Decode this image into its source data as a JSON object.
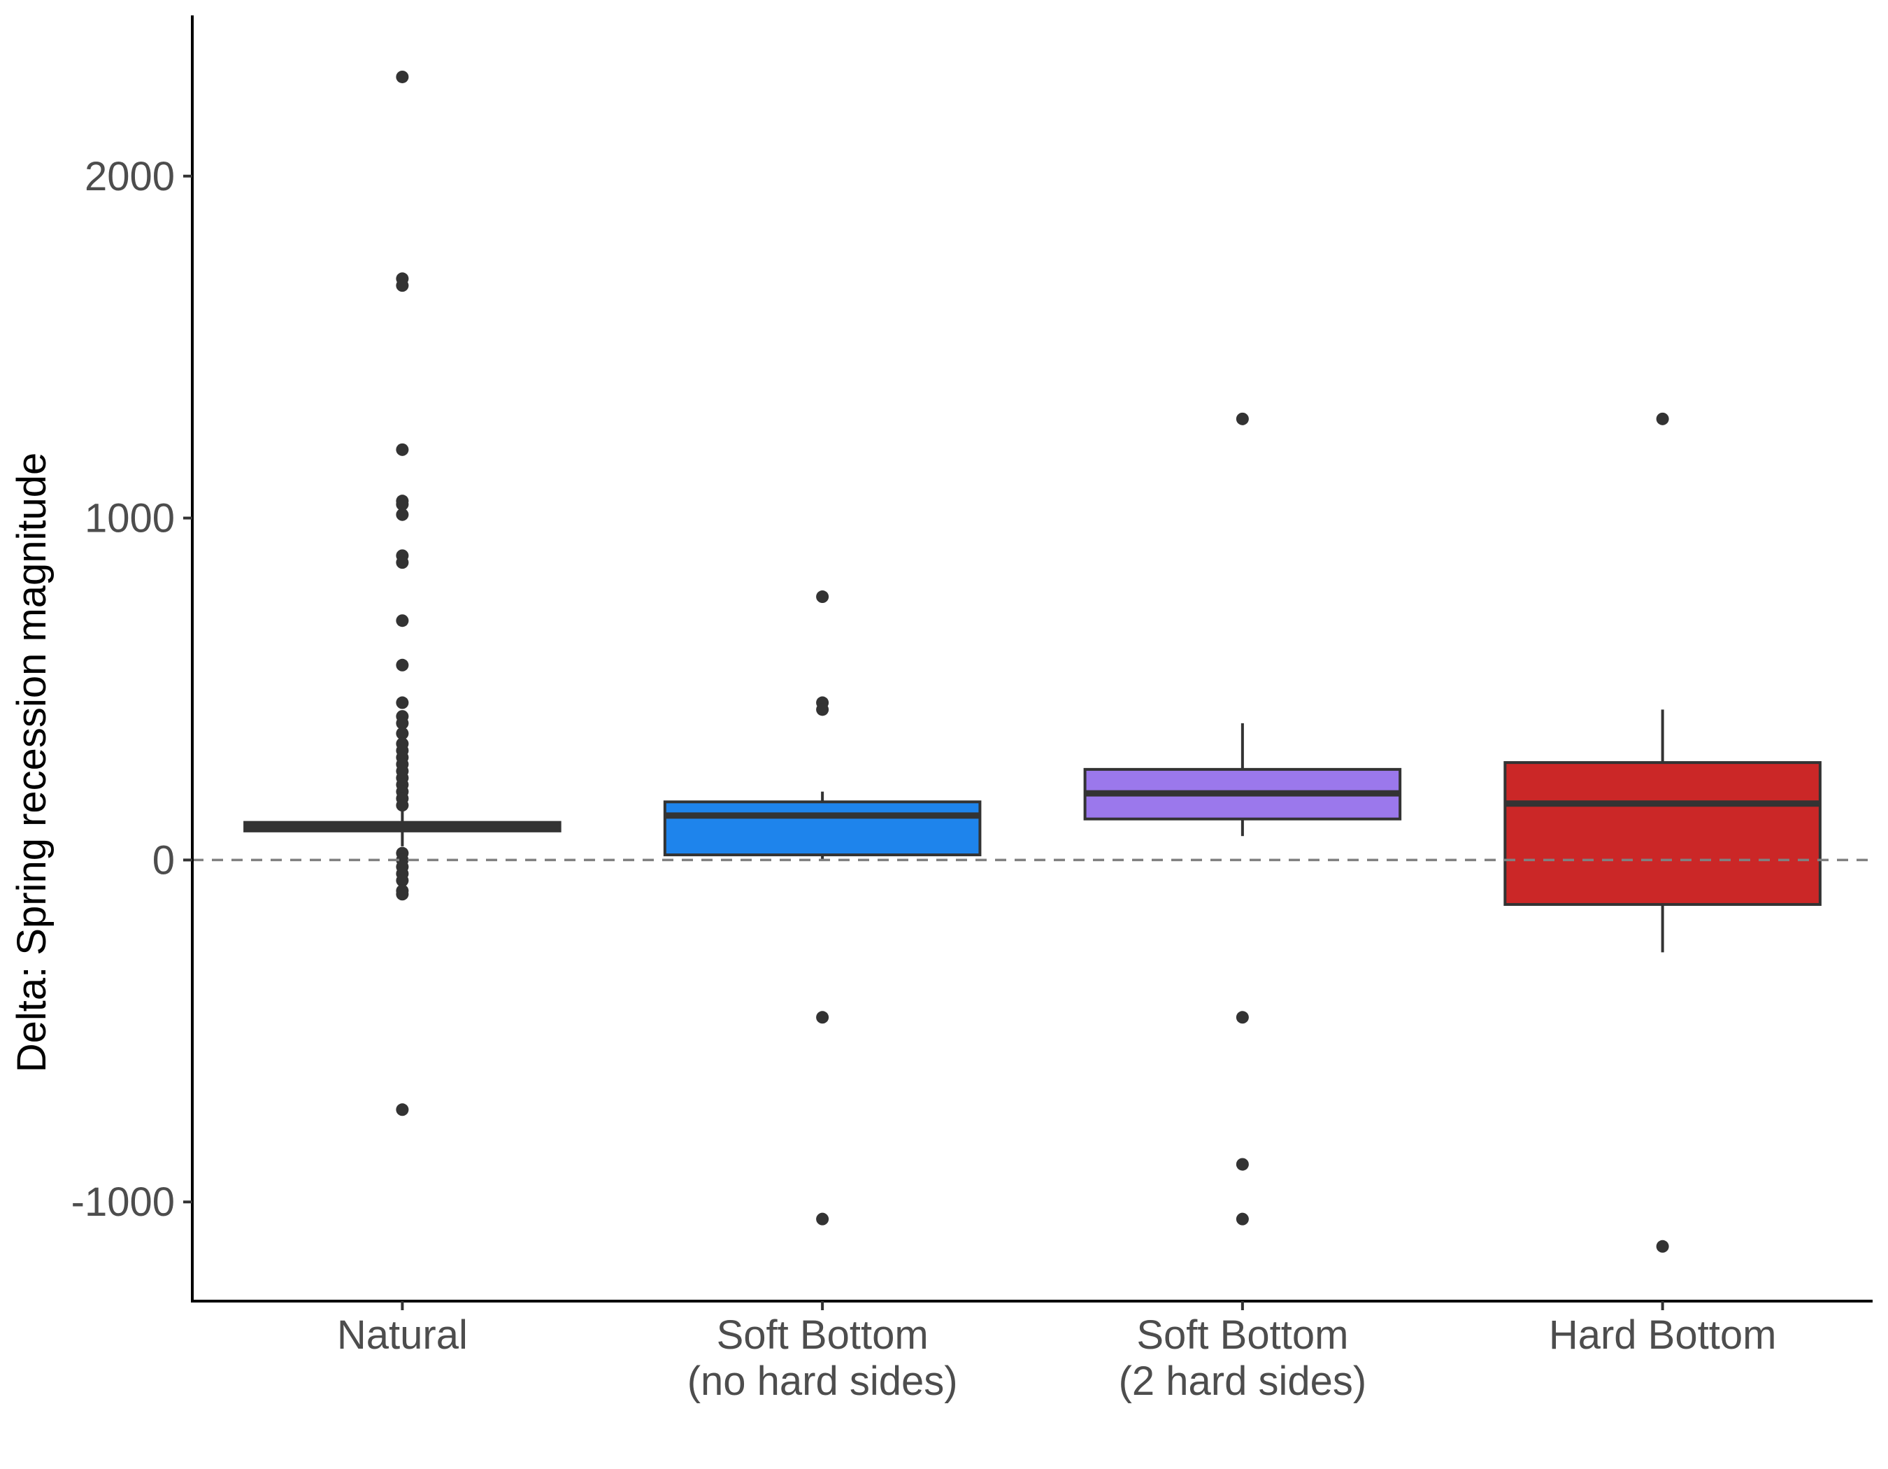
{
  "chart_data": {
    "type": "box",
    "title": "",
    "xlabel": "",
    "ylabel": "Delta: Spring recession magnitude",
    "ylim": [
      -1290,
      2470
    ],
    "y_ticks": [
      -1000,
      0,
      1000,
      2000
    ],
    "y_tick_labels": [
      "-1000",
      "0",
      "1000",
      "2000"
    ],
    "reference_line": {
      "y": 0,
      "style": "dashed"
    },
    "grid": false,
    "legend": "none",
    "categories": [
      {
        "label_lines": [
          "Natural"
        ],
        "color": "#5a8c1e"
      },
      {
        "label_lines": [
          "Soft Bottom",
          "(no hard sides)"
        ],
        "color": "#1e84ec"
      },
      {
        "label_lines": [
          "Soft Bottom",
          "(2 hard sides)"
        ],
        "color": "#9b78ec"
      },
      {
        "label_lines": [
          "Hard Bottom"
        ],
        "color": "#cb2727"
      }
    ],
    "boxes": [
      {
        "category": "Natural",
        "whisker_low": 40,
        "q1": 85,
        "median": 97,
        "q3": 110,
        "whisker_high": 150,
        "outliers": [
          2290,
          1700,
          1680,
          1200,
          1050,
          1040,
          1010,
          890,
          870,
          700,
          570,
          460,
          420,
          400,
          370,
          340,
          320,
          300,
          280,
          260,
          240,
          220,
          200,
          180,
          160,
          20,
          0,
          -20,
          -40,
          -60,
          -90,
          -100,
          -730
        ]
      },
      {
        "category": "Soft Bottom (no hard sides)",
        "whisker_low": 0,
        "q1": 15,
        "median": 130,
        "q3": 170,
        "whisker_high": 200,
        "outliers": [
          770,
          460,
          440,
          -460,
          -1050
        ]
      },
      {
        "category": "Soft Bottom (2 hard sides)",
        "whisker_low": 70,
        "q1": 120,
        "median": 195,
        "q3": 265,
        "whisker_high": 400,
        "outliers": [
          1290,
          -460,
          -890,
          -1050
        ]
      },
      {
        "category": "Hard Bottom",
        "whisker_low": -270,
        "q1": -130,
        "median": 165,
        "q3": 285,
        "whisker_high": 440,
        "outliers": [
          1290,
          -1130
        ]
      }
    ]
  }
}
